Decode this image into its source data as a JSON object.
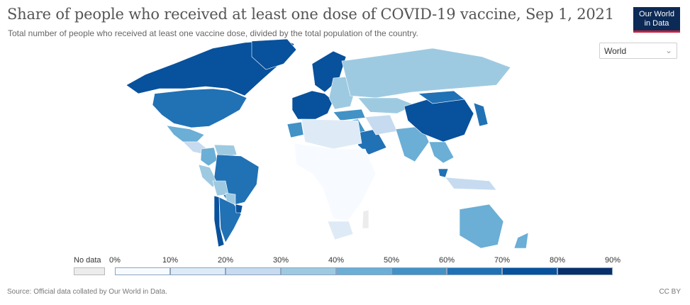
{
  "header": {
    "title": "Share of people who received at least one dose of COVID-19 vaccine, Sep 1, 2021",
    "subtitle": "Total number of people who received at least one vaccine dose, divided by the total population of the country."
  },
  "logo": {
    "line1": "Our World",
    "line2": "in Data"
  },
  "region_select": {
    "value": "World",
    "icon": "chevron-down-icon"
  },
  "legend": {
    "no_data_label": "No data",
    "no_data_color": "#ececec",
    "ticks": [
      "0%",
      "10%",
      "20%",
      "30%",
      "40%",
      "50%",
      "60%",
      "70%",
      "80%",
      "90%"
    ],
    "bin_colors": [
      "#f7fbff",
      "#deebf7",
      "#c6dbef",
      "#9ecae1",
      "#6baed6",
      "#4292c6",
      "#2171b5",
      "#08519c",
      "#08306b"
    ]
  },
  "map_data": {
    "metric": "share of people with at least one dose",
    "unit": "%",
    "regions": [
      {
        "name": "Canada",
        "value": 75
      },
      {
        "name": "United States",
        "value": 62
      },
      {
        "name": "Greenland",
        "value": 75
      },
      {
        "name": "Mexico",
        "value": 45
      },
      {
        "name": "Central America",
        "value": 25
      },
      {
        "name": "Colombia",
        "value": 45
      },
      {
        "name": "Venezuela",
        "value": 30
      },
      {
        "name": "Peru",
        "value": 35
      },
      {
        "name": "Brazil",
        "value": 65
      },
      {
        "name": "Bolivia",
        "value": 30
      },
      {
        "name": "Paraguay",
        "value": 30
      },
      {
        "name": "Chile",
        "value": 75
      },
      {
        "name": "Argentina",
        "value": 65
      },
      {
        "name": "Uruguay",
        "value": 75
      },
      {
        "name": "Western Europe",
        "value": 75
      },
      {
        "name": "Scandinavia",
        "value": 72
      },
      {
        "name": "Eastern Europe",
        "value": 35
      },
      {
        "name": "Russia",
        "value": 30
      },
      {
        "name": "Kazakhstan",
        "value": 30
      },
      {
        "name": "Turkey",
        "value": 55
      },
      {
        "name": "Middle East",
        "value": 50
      },
      {
        "name": "Saudi Arabia",
        "value": 65
      },
      {
        "name": "Iran",
        "value": 20
      },
      {
        "name": "India",
        "value": 40
      },
      {
        "name": "China",
        "value": 75
      },
      {
        "name": "Mongolia",
        "value": 65
      },
      {
        "name": "Japan",
        "value": 60
      },
      {
        "name": "Southeast Asia",
        "value": 40
      },
      {
        "name": "Malaysia",
        "value": 65
      },
      {
        "name": "Indonesia",
        "value": 20
      },
      {
        "name": "Australia",
        "value": 45
      },
      {
        "name": "New Zealand",
        "value": 40
      },
      {
        "name": "North Africa",
        "value": 10
      },
      {
        "name": "Morocco",
        "value": 55
      },
      {
        "name": "Sub-Saharan Africa",
        "value": 3
      },
      {
        "name": "South Africa",
        "value": 12
      },
      {
        "name": "Madagascar",
        "value": null
      }
    ]
  },
  "footer": {
    "source": "Source: Official data collated by Our World in Data.",
    "license": "CC BY"
  }
}
